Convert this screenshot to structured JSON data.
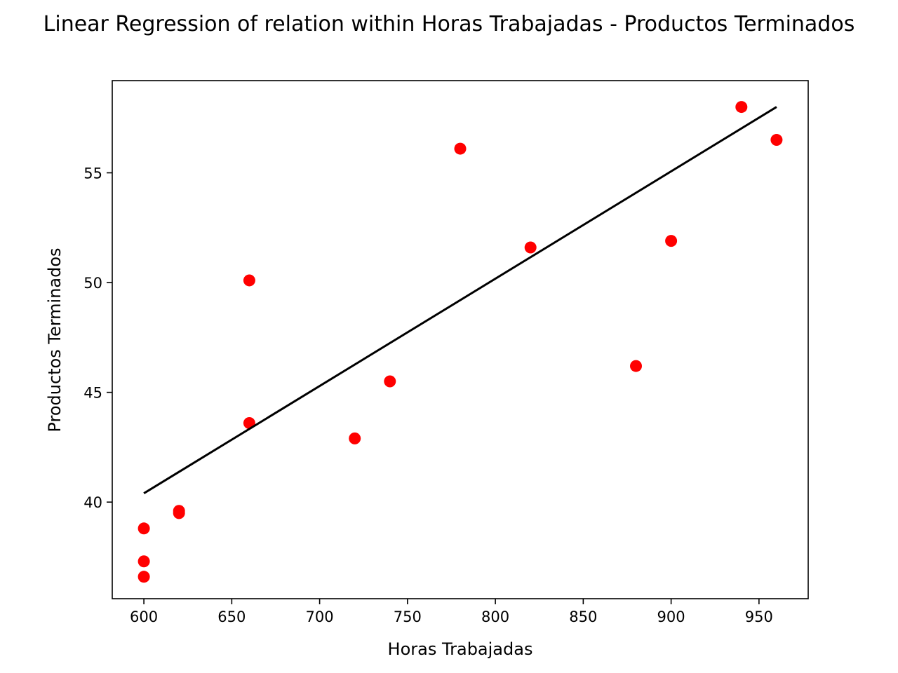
{
  "chart_data": {
    "type": "scatter",
    "title": "Linear Regression of relation within Horas Trabajadas - Productos Terminados",
    "xlabel": "Horas Trabajadas",
    "ylabel": "Productos Terminados",
    "xlim": [
      582,
      978
    ],
    "ylim": [
      35.6,
      59.2
    ],
    "xticks": [
      600,
      650,
      700,
      750,
      800,
      850,
      900,
      950
    ],
    "yticks": [
      40,
      45,
      50,
      55
    ],
    "grid": false,
    "legend": "none",
    "series": [
      {
        "kind": "scatter",
        "color": "#ff0000",
        "points": [
          {
            "x": 600,
            "y": 36.6
          },
          {
            "x": 600,
            "y": 37.3
          },
          {
            "x": 600,
            "y": 38.8
          },
          {
            "x": 620,
            "y": 39.6
          },
          {
            "x": 620,
            "y": 39.5
          },
          {
            "x": 660,
            "y": 50.1
          },
          {
            "x": 660,
            "y": 43.6
          },
          {
            "x": 720,
            "y": 42.9
          },
          {
            "x": 740,
            "y": 45.5
          },
          {
            "x": 780,
            "y": 56.1
          },
          {
            "x": 820,
            "y": 51.6
          },
          {
            "x": 880,
            "y": 46.2
          },
          {
            "x": 900,
            "y": 51.9
          },
          {
            "x": 940,
            "y": 58.0
          },
          {
            "x": 960,
            "y": 56.5
          }
        ]
      },
      {
        "kind": "line",
        "color": "#000000",
        "points": [
          {
            "x": 600,
            "y": 40.4
          },
          {
            "x": 960,
            "y": 58.0
          }
        ]
      }
    ]
  }
}
